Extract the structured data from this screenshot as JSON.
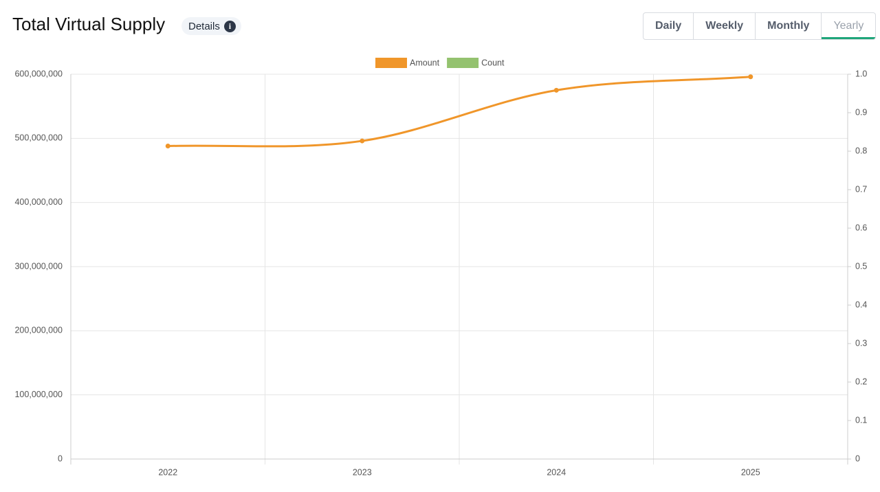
{
  "chart_data": {
    "type": "line",
    "title": "Total Virtual Supply",
    "details_label": "Details",
    "periods": [
      "Daily",
      "Weekly",
      "Monthly",
      "Yearly"
    ],
    "active_period": "Yearly",
    "categories": [
      "2022",
      "2023",
      "2024",
      "2025"
    ],
    "series": [
      {
        "name": "Amount",
        "color": "#f0962a",
        "values": [
          488000000,
          496000000,
          575000000,
          596000000
        ]
      },
      {
        "name": "Count",
        "color": "#94c26f",
        "axis": "y2",
        "values": [
          null,
          null,
          null,
          null
        ]
      }
    ],
    "ylim": [
      0,
      600000000
    ],
    "yticks": [
      0,
      {
        "value": 100000000,
        "label": "100,000,000"
      },
      {
        "value": 200000000,
        "label": "200,000,000"
      },
      {
        "value": 300000000,
        "label": "300,000,000"
      },
      {
        "value": 400000000,
        "label": "400,000,000"
      },
      {
        "value": 500000000,
        "label": "500,000,000"
      },
      {
        "value": 600000000,
        "label": "600,000,000"
      }
    ],
    "y2lim": [
      0,
      1
    ],
    "y2ticks": [
      0,
      0.1,
      0.2,
      0.3,
      0.4,
      0.5,
      0.6,
      0.7,
      0.8,
      0.9,
      {
        "value": 1,
        "label": "1.0"
      }
    ],
    "grid": true,
    "legend": "top"
  }
}
